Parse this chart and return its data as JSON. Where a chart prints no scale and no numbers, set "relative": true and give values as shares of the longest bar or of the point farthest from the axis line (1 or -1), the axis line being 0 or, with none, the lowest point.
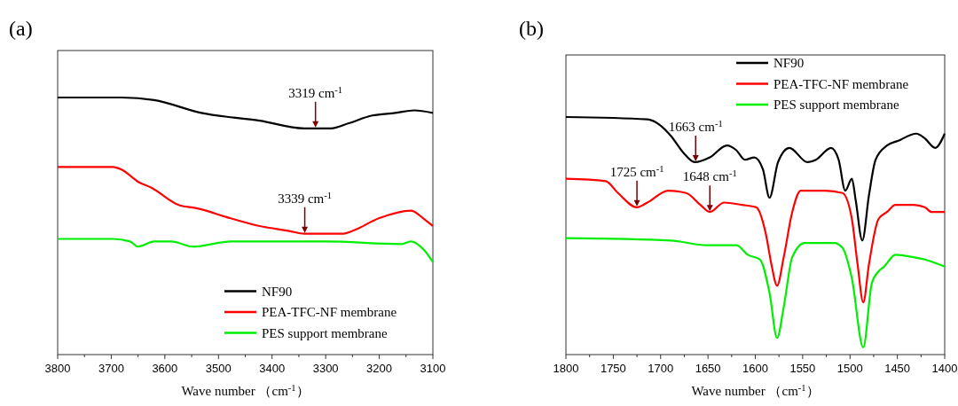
{
  "chart_data": [
    {
      "type": "line",
      "title": "(a)",
      "xlabel": "Wave number （cm$^{-1}$）",
      "relative": true,
      "xlim": [
        3800,
        3100
      ],
      "xticks": [
        3800,
        {
          "value": 3750,
          "label": null
        },
        3700,
        {
          "value": 3650,
          "label": null
        },
        3600,
        {
          "value": 3550,
          "label": null
        },
        3500,
        {
          "value": 3450,
          "label": null
        },
        3400,
        {
          "value": 3350,
          "label": null
        },
        3300,
        {
          "value": 3250,
          "label": null
        },
        3200,
        {
          "value": 3150,
          "label": null
        },
        3100
      ],
      "tick_labels": "x",
      "grid": false,
      "legend": "bottom right",
      "line_style": "solid",
      "marker": "none",
      "series": [
        {
          "name": "NF90",
          "color": "#000000",
          "x": [
            3800,
            3681,
            3620,
            3532,
            3423,
            3340,
            3319,
            3290,
            3257,
            3213,
            3170,
            3135,
            3100
          ],
          "values": [
            1.0,
            1.0,
            0.99,
            0.94,
            0.91,
            0.88,
            0.88,
            0.88,
            0.9,
            0.93,
            0.94,
            0.95,
            0.94
          ]
        },
        {
          "name": "PEA-TFC-NF membrane",
          "color": "#ff0000",
          "x": [
            3800,
            3697,
            3681,
            3648,
            3626,
            3572,
            3543,
            3477,
            3423,
            3366,
            3340,
            3267,
            3251,
            3201,
            3141,
            3118,
            3100
          ],
          "values": [
            0.73,
            0.73,
            0.72,
            0.67,
            0.65,
            0.58,
            0.57,
            0.53,
            0.5,
            0.48,
            0.47,
            0.47,
            0.48,
            0.53,
            0.56,
            0.53,
            0.5
          ]
        },
        {
          "name": "PES support membrane",
          "color": "#00ee00",
          "x": [
            3800,
            3697,
            3665,
            3650,
            3620,
            3588,
            3548,
            3477,
            3300,
            3158,
            3141,
            3118,
            3100
          ],
          "values": [
            0.45,
            0.45,
            0.44,
            0.42,
            0.44,
            0.44,
            0.42,
            0.44,
            0.44,
            0.43,
            0.44,
            0.41,
            0.36
          ]
        }
      ],
      "annotations": [
        {
          "text": "3319 cm$^{-1}$",
          "x": 3319,
          "y": 0.88
        },
        {
          "text": "3339 cm$^{-1}$",
          "x": 3339,
          "y": 0.47
        }
      ]
    },
    {
      "type": "line",
      "title": "(b)",
      "xlabel": "Wave number （cm$^{-1}$）",
      "relative": true,
      "xlim": [
        1800,
        1400
      ],
      "xticks": [
        1800,
        {
          "value": 1775,
          "label": null
        },
        1750,
        {
          "value": 1725,
          "label": null
        },
        1700,
        {
          "value": 1675,
          "label": null
        },
        1650,
        {
          "value": 1625,
          "label": null
        },
        1600,
        {
          "value": 1575,
          "label": null
        },
        1550,
        {
          "value": 1525,
          "label": null
        },
        1500,
        {
          "value": 1475,
          "label": null
        },
        1450,
        {
          "value": 1425,
          "label": null
        },
        1400
      ],
      "tick_labels": "x",
      "grid": false,
      "legend": "top right",
      "line_style": "solid",
      "marker": "none",
      "series": [
        {
          "name": "NF90",
          "color": "#000000",
          "x": [
            1800,
            1714,
            1702,
            1689,
            1676,
            1664,
            1648,
            1630,
            1620,
            1611,
            1601,
            1592,
            1585,
            1576,
            1564,
            1545,
            1536,
            1520,
            1512,
            1505,
            1498,
            1494,
            1487,
            1480,
            1473,
            1461,
            1449,
            1430,
            1421,
            1410,
            1400
          ],
          "values": [
            1.0,
            0.99,
            0.97,
            0.92,
            0.85,
            0.81,
            0.83,
            0.88,
            0.86,
            0.82,
            0.83,
            0.78,
            0.66,
            0.81,
            0.87,
            0.81,
            0.82,
            0.87,
            0.82,
            0.69,
            0.74,
            0.65,
            0.48,
            0.67,
            0.82,
            0.88,
            0.9,
            0.93,
            0.91,
            0.87,
            0.93
          ]
        },
        {
          "name": "PEA-TFC-NF membrane",
          "color": "#ff0000",
          "x": [
            1800,
            1758,
            1745,
            1725,
            1714,
            1692,
            1673,
            1658,
            1648,
            1633,
            1614,
            1599,
            1589,
            1583,
            1577,
            1570,
            1561,
            1552,
            1526,
            1508,
            1498,
            1492,
            1486,
            1480,
            1470,
            1461,
            1452,
            1433,
            1421,
            1414,
            1400
          ],
          "values": [
            0.74,
            0.73,
            0.68,
            0.62,
            0.64,
            0.69,
            0.68,
            0.63,
            0.6,
            0.64,
            0.63,
            0.62,
            0.51,
            0.38,
            0.29,
            0.41,
            0.6,
            0.69,
            0.69,
            0.68,
            0.57,
            0.38,
            0.22,
            0.38,
            0.57,
            0.6,
            0.63,
            0.63,
            0.62,
            0.6,
            0.6
          ]
        },
        {
          "name": "PES support membrane",
          "color": "#00ee00",
          "x": [
            1800,
            1689,
            1651,
            1620,
            1608,
            1595,
            1585,
            1577,
            1570,
            1561,
            1548,
            1517,
            1508,
            1498,
            1486,
            1477,
            1470,
            1464,
            1452,
            1433,
            1421,
            1400
          ],
          "values": [
            0.49,
            0.48,
            0.46,
            0.46,
            0.42,
            0.4,
            0.26,
            0.07,
            0.2,
            0.41,
            0.47,
            0.47,
            0.45,
            0.32,
            0.03,
            0.3,
            0.35,
            0.37,
            0.42,
            0.41,
            0.4,
            0.37
          ]
        }
      ],
      "annotations": [
        {
          "text": "1663 cm$^{-1}$",
          "x": 1663,
          "y": 0.81
        },
        {
          "text": "1725 cm$^{-1}$",
          "x": 1725,
          "y": 0.62
        },
        {
          "text": "1648 cm$^{-1}$",
          "x": 1648,
          "y": 0.6
        }
      ]
    }
  ]
}
